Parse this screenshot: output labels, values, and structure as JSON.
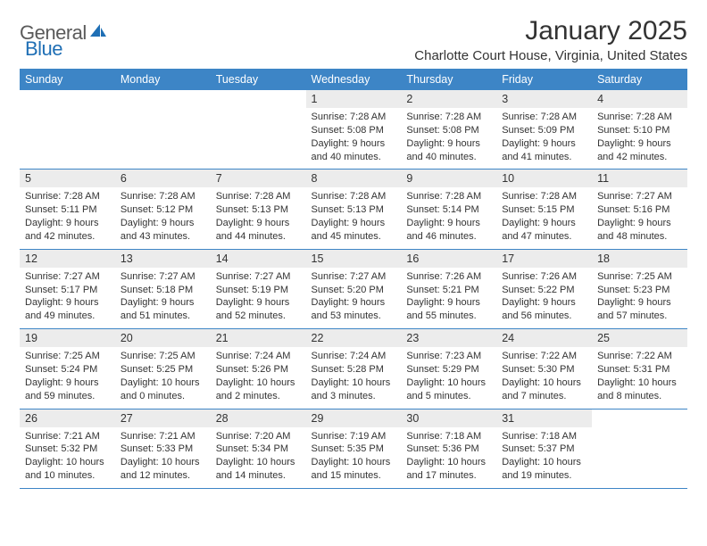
{
  "logo": {
    "word1": "General",
    "word2": "Blue"
  },
  "title": "January 2025",
  "location": "Charlotte Court House, Virginia, United States",
  "colors": {
    "header_bg": "#3d85c6",
    "header_text": "#ffffff",
    "daynum_bg": "#ececec",
    "text": "#333333",
    "rule": "#3d85c6",
    "logo_gray": "#5a5a5a",
    "logo_blue": "#1f6fb5"
  },
  "fonts": {
    "title_size_pt": 22,
    "location_size_pt": 11,
    "th_size_pt": 9.5,
    "daynum_size_pt": 9.5,
    "cell_size_pt": 8.2
  },
  "weekdays": [
    "Sunday",
    "Monday",
    "Tuesday",
    "Wednesday",
    "Thursday",
    "Friday",
    "Saturday"
  ],
  "weeks": [
    [
      null,
      null,
      null,
      {
        "n": "1",
        "sunrise": "7:28 AM",
        "sunset": "5:08 PM",
        "daylight": "9 hours and 40 minutes."
      },
      {
        "n": "2",
        "sunrise": "7:28 AM",
        "sunset": "5:08 PM",
        "daylight": "9 hours and 40 minutes."
      },
      {
        "n": "3",
        "sunrise": "7:28 AM",
        "sunset": "5:09 PM",
        "daylight": "9 hours and 41 minutes."
      },
      {
        "n": "4",
        "sunrise": "7:28 AM",
        "sunset": "5:10 PM",
        "daylight": "9 hours and 42 minutes."
      }
    ],
    [
      {
        "n": "5",
        "sunrise": "7:28 AM",
        "sunset": "5:11 PM",
        "daylight": "9 hours and 42 minutes."
      },
      {
        "n": "6",
        "sunrise": "7:28 AM",
        "sunset": "5:12 PM",
        "daylight": "9 hours and 43 minutes."
      },
      {
        "n": "7",
        "sunrise": "7:28 AM",
        "sunset": "5:13 PM",
        "daylight": "9 hours and 44 minutes."
      },
      {
        "n": "8",
        "sunrise": "7:28 AM",
        "sunset": "5:13 PM",
        "daylight": "9 hours and 45 minutes."
      },
      {
        "n": "9",
        "sunrise": "7:28 AM",
        "sunset": "5:14 PM",
        "daylight": "9 hours and 46 minutes."
      },
      {
        "n": "10",
        "sunrise": "7:28 AM",
        "sunset": "5:15 PM",
        "daylight": "9 hours and 47 minutes."
      },
      {
        "n": "11",
        "sunrise": "7:27 AM",
        "sunset": "5:16 PM",
        "daylight": "9 hours and 48 minutes."
      }
    ],
    [
      {
        "n": "12",
        "sunrise": "7:27 AM",
        "sunset": "5:17 PM",
        "daylight": "9 hours and 49 minutes."
      },
      {
        "n": "13",
        "sunrise": "7:27 AM",
        "sunset": "5:18 PM",
        "daylight": "9 hours and 51 minutes."
      },
      {
        "n": "14",
        "sunrise": "7:27 AM",
        "sunset": "5:19 PM",
        "daylight": "9 hours and 52 minutes."
      },
      {
        "n": "15",
        "sunrise": "7:27 AM",
        "sunset": "5:20 PM",
        "daylight": "9 hours and 53 minutes."
      },
      {
        "n": "16",
        "sunrise": "7:26 AM",
        "sunset": "5:21 PM",
        "daylight": "9 hours and 55 minutes."
      },
      {
        "n": "17",
        "sunrise": "7:26 AM",
        "sunset": "5:22 PM",
        "daylight": "9 hours and 56 minutes."
      },
      {
        "n": "18",
        "sunrise": "7:25 AM",
        "sunset": "5:23 PM",
        "daylight": "9 hours and 57 minutes."
      }
    ],
    [
      {
        "n": "19",
        "sunrise": "7:25 AM",
        "sunset": "5:24 PM",
        "daylight": "9 hours and 59 minutes."
      },
      {
        "n": "20",
        "sunrise": "7:25 AM",
        "sunset": "5:25 PM",
        "daylight": "10 hours and 0 minutes."
      },
      {
        "n": "21",
        "sunrise": "7:24 AM",
        "sunset": "5:26 PM",
        "daylight": "10 hours and 2 minutes."
      },
      {
        "n": "22",
        "sunrise": "7:24 AM",
        "sunset": "5:28 PM",
        "daylight": "10 hours and 3 minutes."
      },
      {
        "n": "23",
        "sunrise": "7:23 AM",
        "sunset": "5:29 PM",
        "daylight": "10 hours and 5 minutes."
      },
      {
        "n": "24",
        "sunrise": "7:22 AM",
        "sunset": "5:30 PM",
        "daylight": "10 hours and 7 minutes."
      },
      {
        "n": "25",
        "sunrise": "7:22 AM",
        "sunset": "5:31 PM",
        "daylight": "10 hours and 8 minutes."
      }
    ],
    [
      {
        "n": "26",
        "sunrise": "7:21 AM",
        "sunset": "5:32 PM",
        "daylight": "10 hours and 10 minutes."
      },
      {
        "n": "27",
        "sunrise": "7:21 AM",
        "sunset": "5:33 PM",
        "daylight": "10 hours and 12 minutes."
      },
      {
        "n": "28",
        "sunrise": "7:20 AM",
        "sunset": "5:34 PM",
        "daylight": "10 hours and 14 minutes."
      },
      {
        "n": "29",
        "sunrise": "7:19 AM",
        "sunset": "5:35 PM",
        "daylight": "10 hours and 15 minutes."
      },
      {
        "n": "30",
        "sunrise": "7:18 AM",
        "sunset": "5:36 PM",
        "daylight": "10 hours and 17 minutes."
      },
      {
        "n": "31",
        "sunrise": "7:18 AM",
        "sunset": "5:37 PM",
        "daylight": "10 hours and 19 minutes."
      },
      null
    ]
  ],
  "labels": {
    "sunrise": "Sunrise:",
    "sunset": "Sunset:",
    "daylight": "Daylight:"
  }
}
